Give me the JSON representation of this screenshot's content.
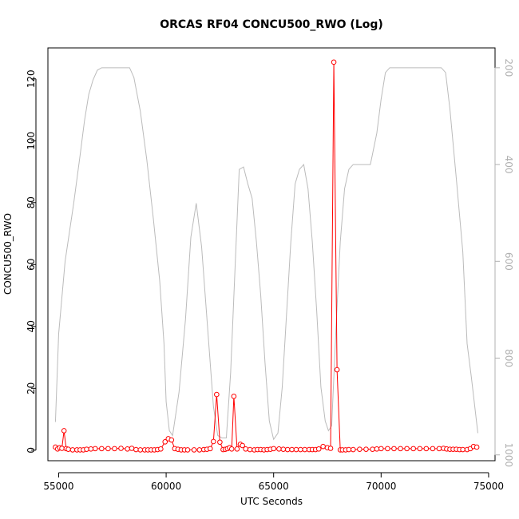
{
  "chart_data": {
    "type": "line",
    "title": "ORCAS RF04 CONCU500_RWO (Log)",
    "xlabel": "UTC Seconds",
    "ylabel": "CONCU500_RWO",
    "xlim": [
      54500,
      75300
    ],
    "ylim": [
      -3.4,
      130
    ],
    "y2lim": [
      1012,
      159
    ],
    "x_ticks": [
      55000,
      60000,
      65000,
      70000,
      75000
    ],
    "y_ticks": [
      0,
      20,
      40,
      60,
      80,
      100,
      120
    ],
    "y2_ticks": [
      200,
      400,
      600,
      800,
      1000
    ],
    "grid": false,
    "colors": {
      "primary": "#ff0000",
      "secondary": "#bbbbbb",
      "axis": "#000000",
      "y2_axis": "#b0b0b0"
    },
    "series": [
      {
        "axis": "left",
        "style": "line+points",
        "x": [
          54850,
          54950,
          55050,
          55150,
          55250,
          55350,
          55450,
          55650,
          55850,
          56000,
          56150,
          56300,
          56500,
          56700,
          57000,
          57300,
          57600,
          57900,
          58200,
          58400,
          58600,
          58800,
          59000,
          59150,
          59300,
          59450,
          59600,
          59750,
          59950,
          60100,
          60250,
          60400,
          60550,
          60700,
          60850,
          61000,
          61300,
          61550,
          61750,
          61900,
          62050,
          62200,
          62350,
          62500,
          62650,
          62750,
          62850,
          62950,
          63050,
          63150,
          63300,
          63450,
          63550,
          63700,
          63900,
          64100,
          64250,
          64400,
          64550,
          64700,
          64850,
          65000,
          65250,
          65450,
          65650,
          65850,
          66050,
          66250,
          66450,
          66650,
          66800,
          66950,
          67100,
          67300,
          67500,
          67650,
          67800,
          67950,
          68100,
          68200,
          68350,
          68500,
          68700,
          69000,
          69300,
          69600,
          69800,
          70000,
          70300,
          70600,
          70900,
          71200,
          71500,
          71800,
          72100,
          72400,
          72700,
          72900,
          73050,
          73200,
          73350,
          73500,
          73650,
          73800,
          74000,
          74150,
          74300,
          74450
        ],
        "y": [
          1.0,
          0.4,
          0.8,
          0.6,
          6.3,
          0.5,
          0.3,
          0.1,
          0.1,
          0.1,
          0.1,
          0.3,
          0.4,
          0.5,
          0.5,
          0.5,
          0.5,
          0.6,
          0.4,
          0.6,
          0.2,
          0.1,
          0.1,
          0.1,
          0.1,
          0.1,
          0.2,
          0.4,
          2.7,
          3.7,
          3.3,
          0.5,
          0.3,
          0.1,
          0.1,
          0.1,
          0.1,
          0.1,
          0.2,
          0.3,
          0.5,
          2.8,
          18.0,
          2.6,
          0.2,
          0.3,
          0.5,
          0.8,
          0.4,
          17.4,
          0.4,
          1.9,
          1.5,
          0.4,
          0.2,
          0.1,
          0.2,
          0.2,
          0.1,
          0.2,
          0.3,
          0.5,
          0.4,
          0.3,
          0.2,
          0.2,
          0.2,
          0.2,
          0.2,
          0.2,
          0.2,
          0.2,
          0.4,
          1.2,
          0.8,
          0.6,
          125.4,
          26.0,
          0.1,
          0.1,
          0.1,
          0.2,
          0.2,
          0.3,
          0.3,
          0.3,
          0.4,
          0.5,
          0.5,
          0.5,
          0.5,
          0.5,
          0.5,
          0.5,
          0.5,
          0.5,
          0.5,
          0.6,
          0.4,
          0.3,
          0.3,
          0.3,
          0.2,
          0.2,
          0.2,
          0.5,
          1.2,
          1.0
        ]
      },
      {
        "axis": "right",
        "style": "line",
        "x": [
          54850,
          55000,
          55300,
          55700,
          56000,
          56200,
          56400,
          56600,
          56800,
          57000,
          57500,
          58000,
          58300,
          58500,
          58800,
          59100,
          59400,
          59700,
          59900,
          60000,
          60150,
          60300,
          60600,
          60900,
          61150,
          61400,
          61650,
          61900,
          62200,
          62400,
          62600,
          62800,
          63000,
          63200,
          63400,
          63600,
          63800,
          64000,
          64200,
          64400,
          64600,
          64800,
          65000,
          65200,
          65400,
          65600,
          65800,
          66000,
          66200,
          66400,
          66600,
          66800,
          67000,
          67200,
          67400,
          67550,
          67700,
          67900,
          68100,
          68300,
          68500,
          68700,
          68800,
          69000,
          69200,
          69500,
          69800,
          70000,
          70200,
          70400,
          70600,
          71000,
          71500,
          72000,
          72500,
          72800,
          73000,
          73200,
          73500,
          73800,
          74000,
          74200,
          74500
        ],
        "y": [
          932,
          750,
          600,
          480,
          380,
          310,
          255,
          225,
          205,
          200,
          200,
          200,
          200,
          220,
          290,
          390,
          510,
          640,
          770,
          890,
          950,
          960,
          870,
          720,
          550,
          480,
          570,
          720,
          900,
          960,
          965,
          965,
          830,
          620,
          410,
          405,
          440,
          470,
          560,
          670,
          810,
          930,
          968,
          955,
          860,
          710,
          560,
          440,
          410,
          400,
          450,
          560,
          700,
          860,
          930,
          950,
          940,
          740,
          560,
          450,
          410,
          400,
          400,
          400,
          400,
          400,
          335,
          265,
          210,
          200,
          200,
          200,
          200,
          200,
          200,
          200,
          210,
          285,
          430,
          580,
          770,
          840,
          955
        ]
      }
    ]
  }
}
